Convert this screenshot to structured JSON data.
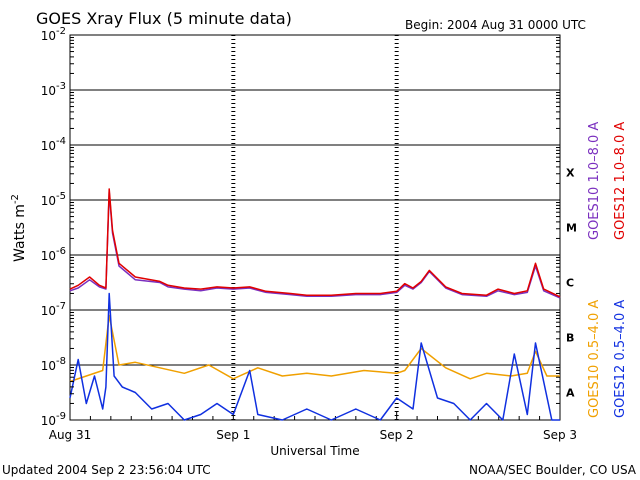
{
  "chart_data": {
    "type": "line",
    "title": "GOES Xray Flux (5 minute data)",
    "begin_label": "Begin:  2004 Aug 31 0000 UTC",
    "xlabel": "Universal Time",
    "ylabel": "Watts m",
    "ylabel_sup": "-2",
    "y_scale": "log",
    "ylim_exp": [
      -9,
      -2
    ],
    "y_ticks": [
      {
        "base": "10",
        "exp": "-2"
      },
      {
        "base": "10",
        "exp": "-3"
      },
      {
        "base": "10",
        "exp": "-4"
      },
      {
        "base": "10",
        "exp": "-5"
      },
      {
        "base": "10",
        "exp": "-6"
      },
      {
        "base": "10",
        "exp": "-7"
      },
      {
        "base": "10",
        "exp": "-8"
      },
      {
        "base": "10",
        "exp": "-9"
      }
    ],
    "x_ticks": [
      {
        "label": "Aug 31",
        "day": 0
      },
      {
        "label": "Sep 1",
        "day": 1
      },
      {
        "label": "Sep 2",
        "day": 2
      },
      {
        "label": "Sep 3",
        "day": 3
      }
    ],
    "flare_classes": [
      {
        "label": "X",
        "exp": -4.5
      },
      {
        "label": "M",
        "exp": -5.5
      },
      {
        "label": "C",
        "exp": -6.5
      },
      {
        "label": "B",
        "exp": -7.5
      },
      {
        "label": "A",
        "exp": -8.5
      }
    ],
    "series": [
      {
        "name": "GOES10 1.0–8.0 A",
        "color": "#7a2fbf",
        "points": [
          [
            0,
            -6.65
          ],
          [
            0.05,
            -6.6
          ],
          [
            0.12,
            -6.45
          ],
          [
            0.18,
            -6.58
          ],
          [
            0.22,
            -6.62
          ],
          [
            0.24,
            -4.85
          ],
          [
            0.26,
            -5.6
          ],
          [
            0.3,
            -6.2
          ],
          [
            0.4,
            -6.45
          ],
          [
            0.55,
            -6.5
          ],
          [
            0.6,
            -6.58
          ],
          [
            0.7,
            -6.62
          ],
          [
            0.8,
            -6.65
          ],
          [
            0.9,
            -6.6
          ],
          [
            1.0,
            -6.62
          ],
          [
            1.1,
            -6.6
          ],
          [
            1.2,
            -6.68
          ],
          [
            1.35,
            -6.72
          ],
          [
            1.45,
            -6.75
          ],
          [
            1.6,
            -6.75
          ],
          [
            1.75,
            -6.72
          ],
          [
            1.9,
            -6.72
          ],
          [
            2.0,
            -6.68
          ],
          [
            2.05,
            -6.55
          ],
          [
            2.1,
            -6.62
          ],
          [
            2.15,
            -6.5
          ],
          [
            2.2,
            -6.3
          ],
          [
            2.3,
            -6.6
          ],
          [
            2.4,
            -6.72
          ],
          [
            2.55,
            -6.75
          ],
          [
            2.62,
            -6.65
          ],
          [
            2.72,
            -6.72
          ],
          [
            2.8,
            -6.68
          ],
          [
            2.85,
            -6.2
          ],
          [
            2.9,
            -6.65
          ],
          [
            3.0,
            -6.78
          ]
        ]
      },
      {
        "name": "GOES12 1.0–8.0 A",
        "color": "#e00000",
        "points": [
          [
            0,
            -6.62
          ],
          [
            0.05,
            -6.55
          ],
          [
            0.12,
            -6.4
          ],
          [
            0.18,
            -6.55
          ],
          [
            0.22,
            -6.6
          ],
          [
            0.24,
            -4.8
          ],
          [
            0.26,
            -5.55
          ],
          [
            0.3,
            -6.15
          ],
          [
            0.4,
            -6.4
          ],
          [
            0.55,
            -6.48
          ],
          [
            0.6,
            -6.55
          ],
          [
            0.7,
            -6.6
          ],
          [
            0.8,
            -6.62
          ],
          [
            0.9,
            -6.58
          ],
          [
            1.0,
            -6.6
          ],
          [
            1.1,
            -6.58
          ],
          [
            1.2,
            -6.66
          ],
          [
            1.35,
            -6.7
          ],
          [
            1.45,
            -6.73
          ],
          [
            1.6,
            -6.73
          ],
          [
            1.75,
            -6.7
          ],
          [
            1.9,
            -6.7
          ],
          [
            2.0,
            -6.66
          ],
          [
            2.05,
            -6.52
          ],
          [
            2.1,
            -6.6
          ],
          [
            2.15,
            -6.48
          ],
          [
            2.2,
            -6.28
          ],
          [
            2.3,
            -6.58
          ],
          [
            2.4,
            -6.7
          ],
          [
            2.55,
            -6.73
          ],
          [
            2.62,
            -6.62
          ],
          [
            2.72,
            -6.7
          ],
          [
            2.8,
            -6.65
          ],
          [
            2.85,
            -6.15
          ],
          [
            2.9,
            -6.62
          ],
          [
            3.0,
            -6.76
          ]
        ]
      },
      {
        "name": "GOES10 0.5–4.0 A",
        "color": "#f0a000",
        "points": [
          [
            0,
            -8.3
          ],
          [
            0.1,
            -8.2
          ],
          [
            0.2,
            -8.1
          ],
          [
            0.24,
            -7.1
          ],
          [
            0.3,
            -8.0
          ],
          [
            0.4,
            -7.95
          ],
          [
            0.55,
            -8.05
          ],
          [
            0.7,
            -8.15
          ],
          [
            0.85,
            -8.0
          ],
          [
            1.0,
            -8.25
          ],
          [
            1.15,
            -8.05
          ],
          [
            1.3,
            -8.2
          ],
          [
            1.45,
            -8.15
          ],
          [
            1.6,
            -8.2
          ],
          [
            1.8,
            -8.1
          ],
          [
            2.0,
            -8.15
          ],
          [
            2.05,
            -8.1
          ],
          [
            2.15,
            -7.7
          ],
          [
            2.3,
            -8.05
          ],
          [
            2.45,
            -8.25
          ],
          [
            2.55,
            -8.15
          ],
          [
            2.7,
            -8.2
          ],
          [
            2.8,
            -8.15
          ],
          [
            2.85,
            -7.75
          ],
          [
            2.92,
            -8.2
          ],
          [
            3.0,
            -8.2
          ]
        ]
      },
      {
        "name": "GOES12 0.5–4.0 A",
        "color": "#1030e0",
        "points": [
          [
            0,
            -8.6
          ],
          [
            0.05,
            -7.9
          ],
          [
            0.1,
            -8.7
          ],
          [
            0.15,
            -8.2
          ],
          [
            0.2,
            -8.8
          ],
          [
            0.22,
            -8.4
          ],
          [
            0.24,
            -6.7
          ],
          [
            0.27,
            -8.2
          ],
          [
            0.32,
            -8.4
          ],
          [
            0.4,
            -8.5
          ],
          [
            0.5,
            -8.8
          ],
          [
            0.6,
            -8.7
          ],
          [
            0.7,
            -9.0
          ],
          [
            0.8,
            -8.9
          ],
          [
            0.9,
            -8.7
          ],
          [
            1.0,
            -8.9
          ],
          [
            1.1,
            -8.1
          ],
          [
            1.15,
            -8.9
          ],
          [
            1.3,
            -9.0
          ],
          [
            1.45,
            -8.8
          ],
          [
            1.6,
            -9.0
          ],
          [
            1.75,
            -8.8
          ],
          [
            1.9,
            -9.0
          ],
          [
            2.0,
            -8.6
          ],
          [
            2.1,
            -8.8
          ],
          [
            2.15,
            -7.6
          ],
          [
            2.25,
            -8.6
          ],
          [
            2.35,
            -8.7
          ],
          [
            2.45,
            -9.0
          ],
          [
            2.55,
            -8.7
          ],
          [
            2.65,
            -9.0
          ],
          [
            2.72,
            -7.8
          ],
          [
            2.8,
            -8.9
          ],
          [
            2.85,
            -7.6
          ],
          [
            2.95,
            -9.0
          ],
          [
            3.0,
            -9.0
          ]
        ]
      }
    ]
  },
  "footer": {
    "updated": "Updated 2004 Sep  2 23:56:04 UTC",
    "source": "NOAA/SEC Boulder, CO USA"
  }
}
